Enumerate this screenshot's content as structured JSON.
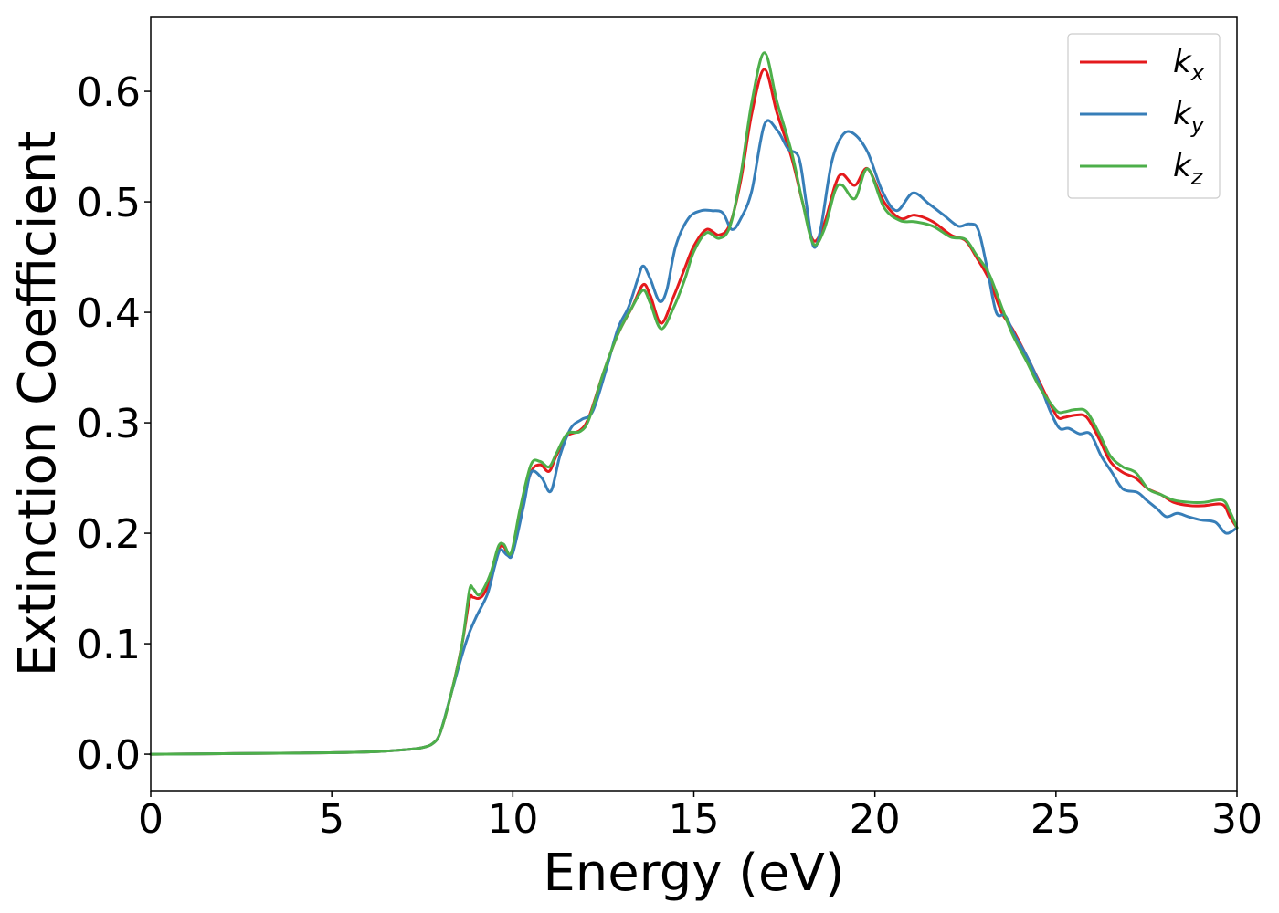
{
  "chart_data": {
    "type": "line",
    "xlabel": "Energy (eV)",
    "ylabel": "Extinction Coefficient",
    "xlim": [
      0,
      30
    ],
    "ylim": [
      -0.033,
      0.667
    ],
    "xticks": [
      0,
      5,
      10,
      15,
      20,
      25,
      30
    ],
    "xtick_labels": [
      "0",
      "5",
      "10",
      "15",
      "20",
      "25",
      "30"
    ],
    "yticks": [
      0.0,
      0.1,
      0.2,
      0.3,
      0.4,
      0.5,
      0.6
    ],
    "ytick_labels": [
      "0.0",
      "0.1",
      "0.2",
      "0.3",
      "0.4",
      "0.5",
      "0.6"
    ],
    "grid": false,
    "legend_position": "top-right",
    "series": [
      {
        "name": "k_x",
        "label_base": "k",
        "label_sub": "x",
        "color": "#e41a1c",
        "x": [
          0,
          2,
          4,
          6,
          7,
          7.5,
          7.8,
          8,
          8.3,
          8.6,
          8.8,
          8.9,
          9.05,
          9.2,
          9.4,
          9.6,
          9.75,
          9.95,
          10.2,
          10.5,
          10.75,
          11,
          11.2,
          11.5,
          11.85,
          12.1,
          12.5,
          12.9,
          13.3,
          13.6,
          13.8,
          14.1,
          14.45,
          14.75,
          15,
          15.35,
          15.7,
          16,
          16.3,
          16.6,
          16.95,
          17.3,
          17.7,
          18,
          18.3,
          18.6,
          18.9,
          19.1,
          19.45,
          19.8,
          20.25,
          20.7,
          21.1,
          21.6,
          22.1,
          22.5,
          22.8,
          23.15,
          23.5,
          23.8,
          24.2,
          24.5,
          24.8,
          25.05,
          25.25,
          25.55,
          25.85,
          26.2,
          26.5,
          26.85,
          27.2,
          27.55,
          27.9,
          28.25,
          28.7,
          29.1,
          29.6,
          29.8,
          30
        ],
        "y": [
          0,
          0.0005,
          0.001,
          0.002,
          0.004,
          0.006,
          0.01,
          0.02,
          0.055,
          0.1,
          0.14,
          0.142,
          0.141,
          0.145,
          0.16,
          0.185,
          0.188,
          0.18,
          0.22,
          0.255,
          0.262,
          0.256,
          0.27,
          0.288,
          0.293,
          0.305,
          0.345,
          0.38,
          0.405,
          0.425,
          0.415,
          0.39,
          0.415,
          0.44,
          0.46,
          0.475,
          0.47,
          0.48,
          0.52,
          0.58,
          0.62,
          0.58,
          0.54,
          0.5,
          0.465,
          0.48,
          0.515,
          0.525,
          0.515,
          0.53,
          0.5,
          0.485,
          0.488,
          0.482,
          0.47,
          0.465,
          0.45,
          0.43,
          0.4,
          0.385,
          0.36,
          0.34,
          0.32,
          0.305,
          0.305,
          0.307,
          0.305,
          0.285,
          0.265,
          0.255,
          0.25,
          0.24,
          0.235,
          0.228,
          0.225,
          0.225,
          0.226,
          0.215,
          0.205
        ]
      },
      {
        "name": "k_y",
        "label_base": "k",
        "label_sub": "y",
        "color": "#377eb8",
        "x": [
          0,
          2,
          4,
          6,
          7,
          7.5,
          7.8,
          8,
          8.3,
          8.6,
          8.8,
          9,
          9.3,
          9.5,
          9.65,
          9.85,
          10,
          10.3,
          10.5,
          10.8,
          11.05,
          11.3,
          11.6,
          11.9,
          12.2,
          12.55,
          12.9,
          13.2,
          13.45,
          13.6,
          13.8,
          14.05,
          14.25,
          14.5,
          14.85,
          15.2,
          15.5,
          15.8,
          16.05,
          16.3,
          16.6,
          16.95,
          17.3,
          17.6,
          17.9,
          18.1,
          18.3,
          18.5,
          18.8,
          19.1,
          19.4,
          19.8,
          20.2,
          20.6,
          21.05,
          21.5,
          21.9,
          22.3,
          22.6,
          22.85,
          23.1,
          23.35,
          23.6,
          23.85,
          24.2,
          24.55,
          24.85,
          25.1,
          25.35,
          25.65,
          25.95,
          26.25,
          26.55,
          26.85,
          27.25,
          27.5,
          27.8,
          28.05,
          28.35,
          28.65,
          29,
          29.4,
          29.7,
          30
        ],
        "y": [
          0,
          0.0005,
          0.001,
          0.002,
          0.004,
          0.006,
          0.01,
          0.02,
          0.055,
          0.09,
          0.11,
          0.125,
          0.145,
          0.17,
          0.185,
          0.18,
          0.182,
          0.225,
          0.255,
          0.25,
          0.238,
          0.27,
          0.295,
          0.303,
          0.31,
          0.345,
          0.385,
          0.405,
          0.43,
          0.442,
          0.43,
          0.41,
          0.42,
          0.46,
          0.485,
          0.492,
          0.492,
          0.49,
          0.475,
          0.485,
          0.51,
          0.57,
          0.565,
          0.548,
          0.54,
          0.5,
          0.46,
          0.475,
          0.535,
          0.56,
          0.562,
          0.545,
          0.51,
          0.492,
          0.508,
          0.498,
          0.488,
          0.478,
          0.48,
          0.475,
          0.44,
          0.4,
          0.397,
          0.38,
          0.36,
          0.335,
          0.31,
          0.295,
          0.295,
          0.29,
          0.29,
          0.27,
          0.255,
          0.24,
          0.237,
          0.23,
          0.222,
          0.215,
          0.218,
          0.215,
          0.212,
          0.21,
          0.2,
          0.205
        ]
      },
      {
        "name": "k_z",
        "label_base": "k",
        "label_sub": "z",
        "color": "#4daf4a",
        "x": [
          0,
          2,
          4,
          6,
          7,
          7.5,
          7.8,
          8,
          8.3,
          8.6,
          8.8,
          8.9,
          9.05,
          9.2,
          9.4,
          9.6,
          9.75,
          9.95,
          10.2,
          10.5,
          10.75,
          11,
          11.2,
          11.5,
          11.85,
          12.1,
          12.5,
          12.9,
          13.3,
          13.6,
          13.8,
          14.1,
          14.45,
          14.75,
          15,
          15.35,
          15.7,
          16,
          16.3,
          16.6,
          16.95,
          17.3,
          17.7,
          18,
          18.3,
          18.6,
          18.9,
          19.1,
          19.45,
          19.8,
          20.25,
          20.7,
          21.1,
          21.6,
          22.1,
          22.5,
          22.8,
          23.15,
          23.5,
          23.8,
          24.2,
          24.5,
          24.8,
          25.05,
          25.25,
          25.55,
          25.85,
          26.2,
          26.5,
          26.85,
          27.2,
          27.55,
          27.9,
          28.25,
          28.7,
          29.1,
          29.6,
          29.8,
          30
        ],
        "y": [
          0,
          0.0005,
          0.001,
          0.002,
          0.004,
          0.006,
          0.01,
          0.02,
          0.055,
          0.1,
          0.148,
          0.15,
          0.144,
          0.15,
          0.165,
          0.188,
          0.19,
          0.182,
          0.222,
          0.262,
          0.265,
          0.26,
          0.272,
          0.29,
          0.292,
          0.303,
          0.345,
          0.38,
          0.405,
          0.42,
          0.408,
          0.385,
          0.405,
          0.43,
          0.455,
          0.472,
          0.467,
          0.478,
          0.525,
          0.59,
          0.635,
          0.59,
          0.545,
          0.5,
          0.462,
          0.475,
          0.51,
          0.515,
          0.503,
          0.53,
          0.495,
          0.483,
          0.482,
          0.478,
          0.468,
          0.466,
          0.452,
          0.435,
          0.405,
          0.38,
          0.355,
          0.335,
          0.32,
          0.31,
          0.31,
          0.312,
          0.31,
          0.29,
          0.27,
          0.26,
          0.255,
          0.24,
          0.235,
          0.23,
          0.228,
          0.228,
          0.23,
          0.22,
          0.205
        ]
      }
    ]
  }
}
